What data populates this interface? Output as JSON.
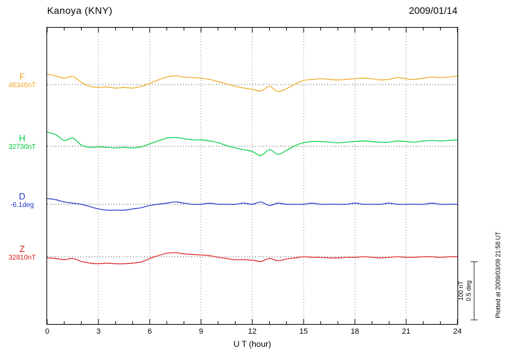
{
  "header": {
    "title": "Kanoya (KNY)",
    "date": "2009/01/14"
  },
  "footer": {
    "plotted_at": "Plotted at 2009/03/09 21:58 UT"
  },
  "chart_data": {
    "type": "line",
    "station": "Kanoya (KNY)",
    "date": "2009/01/14",
    "xlabel": "U T (hour)",
    "xlim": [
      0,
      24
    ],
    "x_ticks": [
      0,
      3,
      6,
      9,
      12,
      15,
      18,
      21,
      24
    ],
    "grid": "dotted-vertical-every-3h",
    "scale_bar": {
      "nT_per_bar": 100,
      "deg_per_bar": 0.5,
      "labels": [
        "100 nT",
        "0.5 deg"
      ]
    },
    "x_hours": [
      0,
      0.5,
      1,
      1.5,
      2,
      2.5,
      3,
      3.5,
      4,
      4.5,
      5,
      5.5,
      6,
      6.5,
      7,
      7.5,
      8,
      8.5,
      9,
      9.5,
      10,
      10.5,
      11,
      11.5,
      12,
      12.5,
      13,
      13.5,
      14,
      14.5,
      15,
      15.5,
      16,
      16.5,
      17,
      17.5,
      18,
      18.5,
      19,
      19.5,
      20,
      20.5,
      21,
      21.5,
      22,
      22.5,
      23,
      23.5,
      24
    ],
    "series": [
      {
        "id": "F",
        "label": "F",
        "value_label": "46340nT",
        "reference": 46340,
        "unit": "nT",
        "color": "#eea620",
        "baseline_frac": 0.192,
        "offsets": [
          18,
          15,
          11,
          14,
          4,
          -3,
          -5,
          -4,
          -6,
          -5,
          -6,
          -3,
          2,
          8,
          13,
          15,
          13,
          12,
          11,
          9,
          5,
          1,
          -3,
          -6,
          -8,
          -11,
          -3,
          -12,
          -7,
          1,
          7,
          9,
          10,
          9,
          8,
          9,
          10,
          11,
          10,
          8,
          9,
          12,
          10,
          9,
          11,
          13,
          12,
          13,
          15
        ]
      },
      {
        "id": "H",
        "label": "H",
        "value_label": "32730nT",
        "reference": 32730,
        "unit": "nT",
        "color": "#00cc44",
        "baseline_frac": 0.4,
        "offsets": [
          24,
          20,
          10,
          14,
          2,
          -2,
          -1,
          -2,
          -3,
          -2,
          -3,
          -1,
          4,
          9,
          14,
          15,
          13,
          11,
          11,
          9,
          6,
          1,
          -3,
          -6,
          -9,
          -16,
          -6,
          -14,
          -7,
          1,
          6,
          8,
          8,
          7,
          6,
          7,
          8,
          9,
          8,
          7,
          7,
          9,
          8,
          7,
          9,
          10,
          9,
          10,
          11
        ]
      },
      {
        "id": "D",
        "label": "D",
        "value_label": "-6.1deg",
        "reference": -6.1,
        "unit": "deg",
        "color": "#2233cc",
        "baseline_frac": 0.596,
        "offsets": [
          0.05,
          0.04,
          0.02,
          0.01,
          0,
          -0.02,
          -0.04,
          -0.05,
          -0.05,
          -0.05,
          -0.04,
          -0.03,
          -0.01,
          0,
          0.01,
          0.02,
          0.01,
          0,
          0,
          0.01,
          0,
          0,
          0,
          0.01,
          0,
          0.02,
          -0.01,
          0.01,
          0,
          0,
          0,
          0.01,
          0,
          0,
          0,
          0,
          0.01,
          0,
          0,
          0,
          0.01,
          0,
          0,
          0,
          0,
          0.01,
          0,
          0,
          0
        ]
      },
      {
        "id": "Z",
        "label": "Z",
        "value_label": "32810nT",
        "reference": 32810,
        "unit": "nT",
        "color": "#dd2222",
        "baseline_frac": 0.773,
        "offsets": [
          -2,
          -3,
          -5,
          -3,
          -8,
          -11,
          -12,
          -11,
          -12,
          -12,
          -11,
          -9,
          -3,
          2,
          6,
          7,
          5,
          4,
          3,
          2,
          -1,
          -3,
          -5,
          -5,
          -6,
          -8,
          -3,
          -7,
          -4,
          -2,
          0,
          -1,
          -1,
          -2,
          -2,
          -1,
          -1,
          0,
          -1,
          -2,
          -1,
          0,
          -1,
          -1,
          0,
          0,
          -1,
          0,
          0
        ]
      }
    ]
  }
}
